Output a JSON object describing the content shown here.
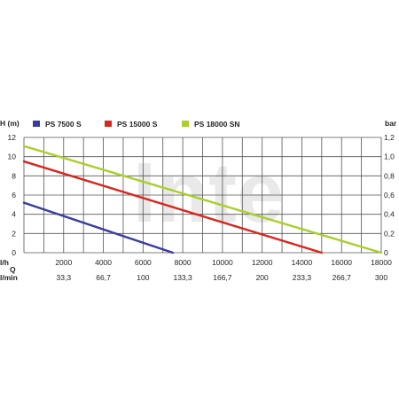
{
  "chart_data": {
    "type": "line",
    "watermark": "Inte",
    "y_left": {
      "label": "H (m)",
      "ticks": [
        "0",
        "2",
        "4",
        "6",
        "8",
        "10",
        "12"
      ],
      "range": [
        0,
        12
      ]
    },
    "y_right": {
      "label": "bar",
      "ticks": [
        "0",
        "0,2",
        "0,4",
        "0,6",
        "0,8",
        "1,0",
        "1,2"
      ]
    },
    "x": {
      "range": [
        0,
        18000
      ],
      "grid_step": 1000,
      "axis_symbol": "Q",
      "lh_unit": "l/h",
      "lh_ticks": [
        "2000",
        "4000",
        "6000",
        "8000",
        "10000",
        "12000",
        "14000",
        "16000",
        "18000"
      ],
      "lmin_unit": "l/min",
      "lmin_ticks": [
        "33,3",
        "66,7",
        "100",
        "133,3",
        "166,7",
        "200",
        "233,3",
        "266,7",
        "300"
      ]
    },
    "grid": true,
    "legend_position": "top",
    "series": [
      {
        "name": "PS 7500 S",
        "color": "#3a3aa0",
        "points": [
          [
            0,
            5.2
          ],
          [
            7500,
            0
          ]
        ]
      },
      {
        "name": "PS 15000 S",
        "color": "#d8261c",
        "points": [
          [
            0,
            9.5
          ],
          [
            15000,
            0
          ]
        ]
      },
      {
        "name": "PS 18000 SN",
        "color": "#a8cf2a",
        "points": [
          [
            0,
            11.1
          ],
          [
            18000,
            0
          ]
        ]
      }
    ]
  }
}
